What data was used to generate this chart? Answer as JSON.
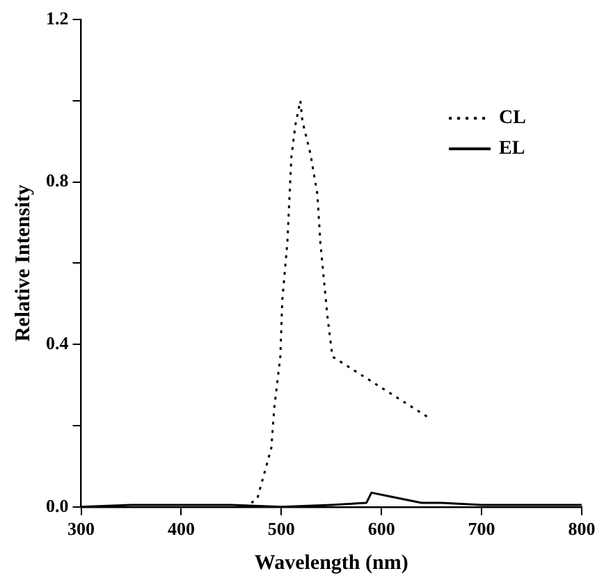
{
  "chart_data": {
    "type": "line",
    "xlabel": "Wavelength (nm)",
    "ylabel": "Relative Intensity",
    "xlim": [
      300,
      800
    ],
    "xticks": [
      300,
      400,
      500,
      600,
      700,
      800
    ],
    "ylim": [
      0,
      1.2
    ],
    "yticks": [
      {
        "value": 0,
        "label": "0.0"
      },
      {
        "value": 0.2,
        "label": null
      },
      0.4,
      {
        "value": 0.6,
        "label": null
      },
      0.8,
      {
        "value": 1.0,
        "label": null
      },
      1.2
    ],
    "series": [
      {
        "name": "CL",
        "color": "#000000",
        "line_style": "dotted",
        "x": [
          470,
          476,
          490,
          493,
          499,
          501,
          506,
          510,
          514,
          519,
          521,
          529,
          536,
          539,
          546,
          551,
          647
        ],
        "values": [
          0.01,
          0.02,
          0.145,
          0.245,
          0.37,
          0.51,
          0.65,
          0.86,
          0.94,
          1.0,
          0.95,
          0.87,
          0.77,
          0.65,
          0.47,
          0.37,
          0.22
        ]
      },
      {
        "name": "EL",
        "color": "#000000",
        "line_style": "solid",
        "x": [
          300,
          350,
          400,
          450,
          500,
          550,
          585,
          590,
          610,
          640,
          660,
          700,
          800
        ],
        "values": [
          0.0,
          0.005,
          0.005,
          0.005,
          0.0,
          0.005,
          0.01,
          0.035,
          0.025,
          0.01,
          0.01,
          0.005,
          0.005
        ]
      }
    ],
    "legend": "top right",
    "grid": false,
    "marker": "none"
  }
}
